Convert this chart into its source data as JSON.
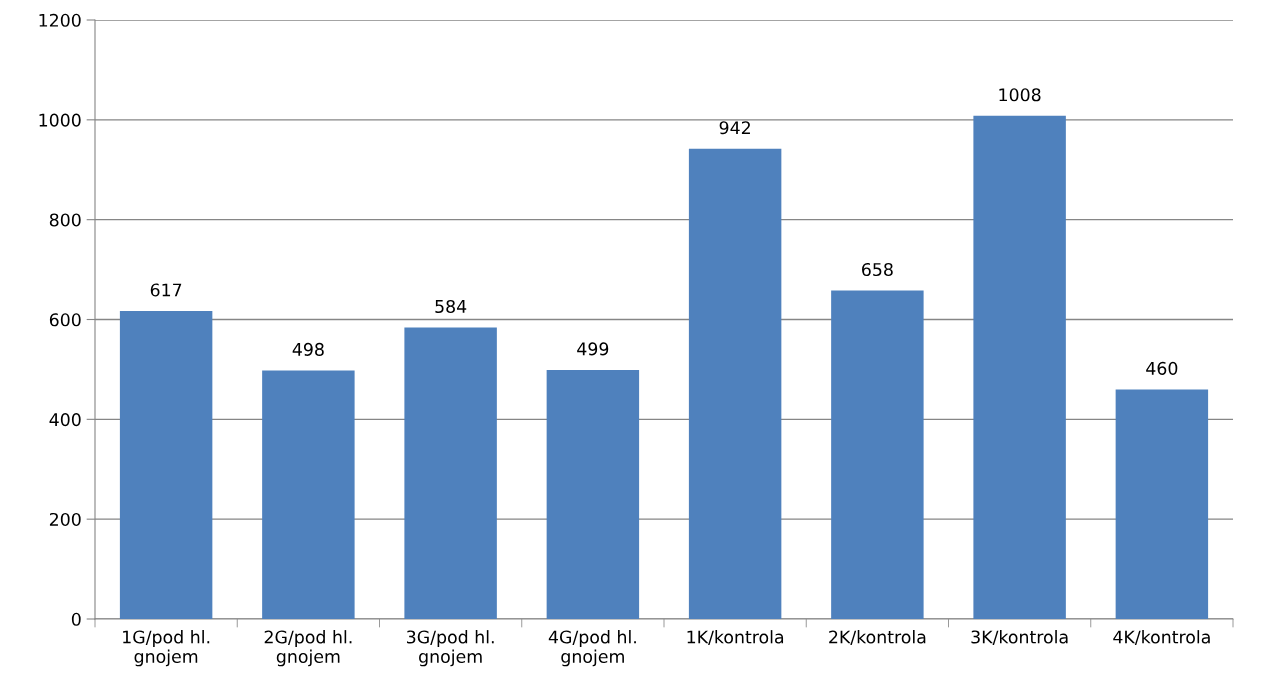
{
  "chart_data": {
    "type": "bar",
    "categories": [
      "1G/pod hl.\ngnojem",
      "2G/pod hl.\ngnojem",
      "3G/pod hl.\ngnojem",
      "4G/pod hl.\ngnojem",
      "1K/kontrola",
      "2K/kontrola",
      "3K/kontrola",
      "4K/kontrola"
    ],
    "values": [
      617,
      498,
      584,
      499,
      942,
      658,
      1008,
      460
    ],
    "color": "#4f81bd",
    "ylim": [
      0,
      1200
    ],
    "yticks": [
      0,
      200,
      400,
      600,
      800,
      1000,
      1200
    ],
    "grid": "y",
    "data_labels": true
  }
}
